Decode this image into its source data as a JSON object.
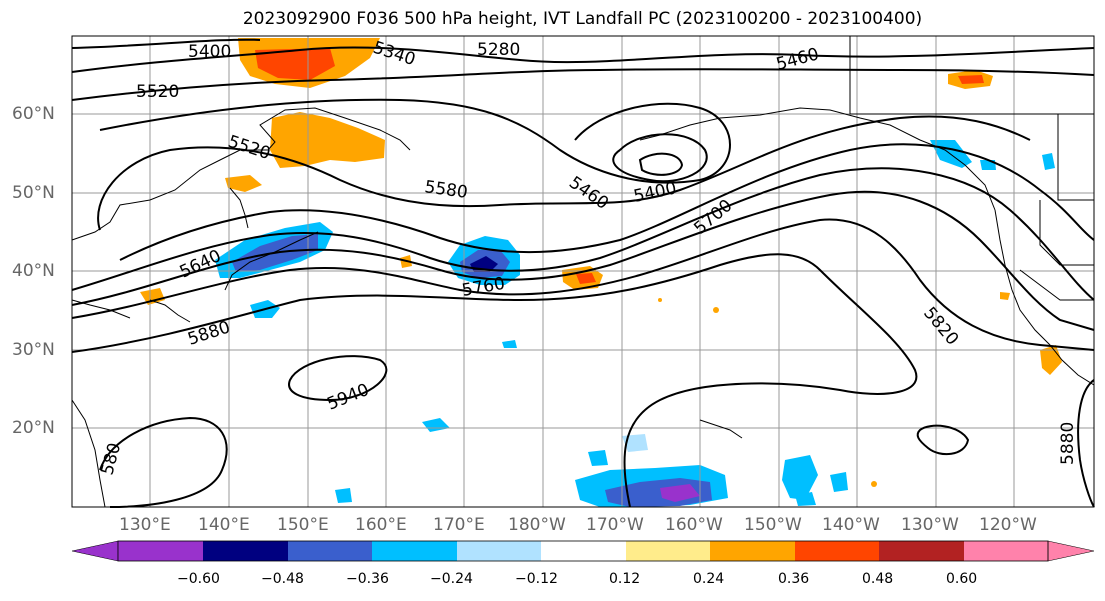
{
  "title": "2023092900 F036 500 hPa height, IVT Landfall PC (2023100200 - 2023100400)",
  "lon_labels": [
    "130°E",
    "140°E",
    "150°E",
    "160°E",
    "170°E",
    "180°W",
    "170°W",
    "160°W",
    "150°W",
    "140°W",
    "130°W",
    "120°W"
  ],
  "lat_labels": [
    "60°N",
    "50°N",
    "40°N",
    "30°N",
    "20°N"
  ],
  "contour_labels": [
    "5400",
    "5340",
    "5280",
    "5460",
    "5520",
    "5520",
    "5580",
    "5460",
    "5400",
    "5700",
    "5640",
    "5760",
    "5880",
    "5820",
    "5940",
    "5880",
    "580"
  ],
  "colorbar": {
    "ticks": [
      "−0.60",
      "−0.48",
      "−0.36",
      "−0.24",
      "−0.12",
      "0.12",
      "0.24",
      "0.36",
      "0.48",
      "0.60"
    ],
    "colors": [
      "#9932cc",
      "#000080",
      "#3a5fcd",
      "#00bfff",
      "#b0e2ff",
      "#ffffff",
      "#ffec8b",
      "#ffa500",
      "#ff4500",
      "#b22222",
      "#ff82ab"
    ]
  }
}
